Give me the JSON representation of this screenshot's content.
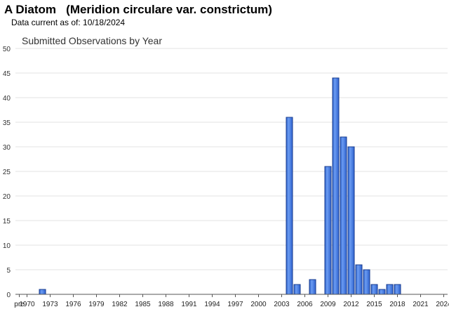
{
  "header": {
    "title": "A Diatom   (Meridion circulare var. constrictum)",
    "data_current": "Data current as of: 10/18/2024"
  },
  "chart_data": {
    "type": "bar",
    "title": "Submitted Observations by Year",
    "xlabel": "",
    "ylabel": "",
    "ylim": [
      0,
      50
    ],
    "yticks": [
      0,
      5,
      10,
      15,
      20,
      25,
      30,
      35,
      40,
      45,
      50
    ],
    "grid": true,
    "legend": "none",
    "bar_color": "#3f77e0",
    "bar_edge_color": "#1a3d8f",
    "categories": [
      "pre",
      "1970",
      "1971",
      "1972",
      "1973",
      "1974",
      "1975",
      "1976",
      "1977",
      "1978",
      "1979",
      "1980",
      "1981",
      "1982",
      "1983",
      "1984",
      "1985",
      "1986",
      "1987",
      "1988",
      "1989",
      "1990",
      "1991",
      "1992",
      "1993",
      "1994",
      "1995",
      "1996",
      "1997",
      "1998",
      "1999",
      "2000",
      "2001",
      "2002",
      "2003",
      "2004",
      "2005",
      "2006",
      "2007",
      "2008",
      "2009",
      "2010",
      "2011",
      "2012",
      "2013",
      "2014",
      "2015",
      "2016",
      "2017",
      "2018",
      "2019",
      "2020",
      "2021",
      "2022",
      "2023",
      "2024"
    ],
    "values": [
      0,
      0,
      0,
      1,
      0,
      0,
      0,
      0,
      0,
      0,
      0,
      0,
      0,
      0,
      0,
      0,
      0,
      0,
      0,
      0,
      0,
      0,
      0,
      0,
      0,
      0,
      0,
      0,
      0,
      0,
      0,
      0,
      0,
      0,
      0,
      36,
      2,
      0,
      3,
      0,
      26,
      44,
      32,
      30,
      6,
      5,
      2,
      1,
      2,
      2,
      0,
      0,
      0,
      0,
      0,
      0
    ],
    "xtick_labels": [
      "pre",
      "1970",
      "1973",
      "1976",
      "1979",
      "1982",
      "1985",
      "1988",
      "1991",
      "1994",
      "1997",
      "2000",
      "2003",
      "2006",
      "2009",
      "2012",
      "2015",
      "2018",
      "2021",
      "2024"
    ]
  }
}
